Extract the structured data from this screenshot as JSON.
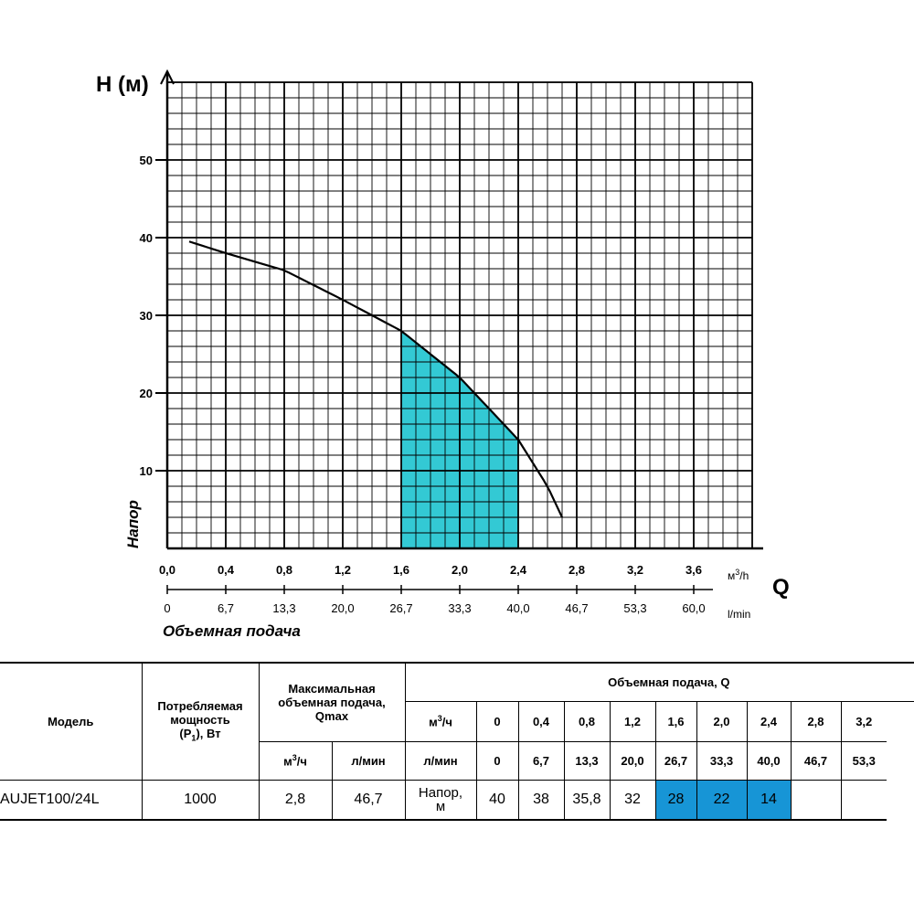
{
  "chart_data": {
    "type": "area",
    "y_axis_title": "H (м)",
    "y_axis_label": "Напор",
    "x_axis_title": "Q",
    "x_axis_label": "Объемная подача",
    "x_unit_primary": "м3/h",
    "x_unit_secondary": "l/min",
    "xlim": [
      0,
      4.0
    ],
    "ylim": [
      0,
      60
    ],
    "x_ticks": [
      "0,0",
      "0,4",
      "0,8",
      "1,2",
      "1,6",
      "2,0",
      "2,4",
      "2,8",
      "3,2",
      "3,6"
    ],
    "x_ticks_secondary": [
      "0",
      "6,7",
      "13,3",
      "20,0",
      "26,7",
      "33,3",
      "40,0",
      "46,7",
      "53,3",
      "60,0"
    ],
    "y_ticks": [
      "10",
      "20",
      "30",
      "40",
      "50"
    ],
    "y_tick_values": [
      10,
      20,
      30,
      40,
      50
    ],
    "grid": true,
    "series": [
      {
        "x": [
          0.15,
          0.4,
          0.8,
          1.2,
          1.6,
          2.0,
          2.4,
          2.6,
          2.7
        ],
        "y": [
          39.5,
          38,
          35.8,
          32,
          28,
          22,
          14,
          8,
          4
        ]
      }
    ],
    "shaded_range": [
      1.6,
      2.4
    ],
    "curve_color": "#000000",
    "shade_color": "#33c9d4"
  },
  "table": {
    "model_header": "Модель",
    "power_header": "Потребляемая мощность (Р1), Вт",
    "qmax_header": "Максимальная объемная подача, Qmax",
    "qmax_unit_m3": "м³/ч",
    "qmax_unit_lmin": "л/мин",
    "flow_header": "Объемная подача, Q",
    "flow_unit_m3": "м³/ч",
    "flow_unit_lmin": "л/мин",
    "flow_m3": [
      "0",
      "0,4",
      "0,8",
      "1,2",
      "1,6",
      "2,0",
      "2,4",
      "2,8",
      "3,2"
    ],
    "flow_lmin": [
      "0",
      "6,7",
      "13,3",
      "20,0",
      "26,7",
      "33,3",
      "40,0",
      "46,7",
      "53,3"
    ],
    "model": "AUJET100/24L",
    "power": "1000",
    "qmax_m3": "2,8",
    "qmax_lmin": "46,7",
    "head_label_1": "Напор,",
    "head_label_2": "м",
    "head_values": [
      "40",
      "38",
      "35,8",
      "32",
      "28",
      "22",
      "14",
      "",
      ""
    ],
    "highlight_color": "#1795d6"
  }
}
